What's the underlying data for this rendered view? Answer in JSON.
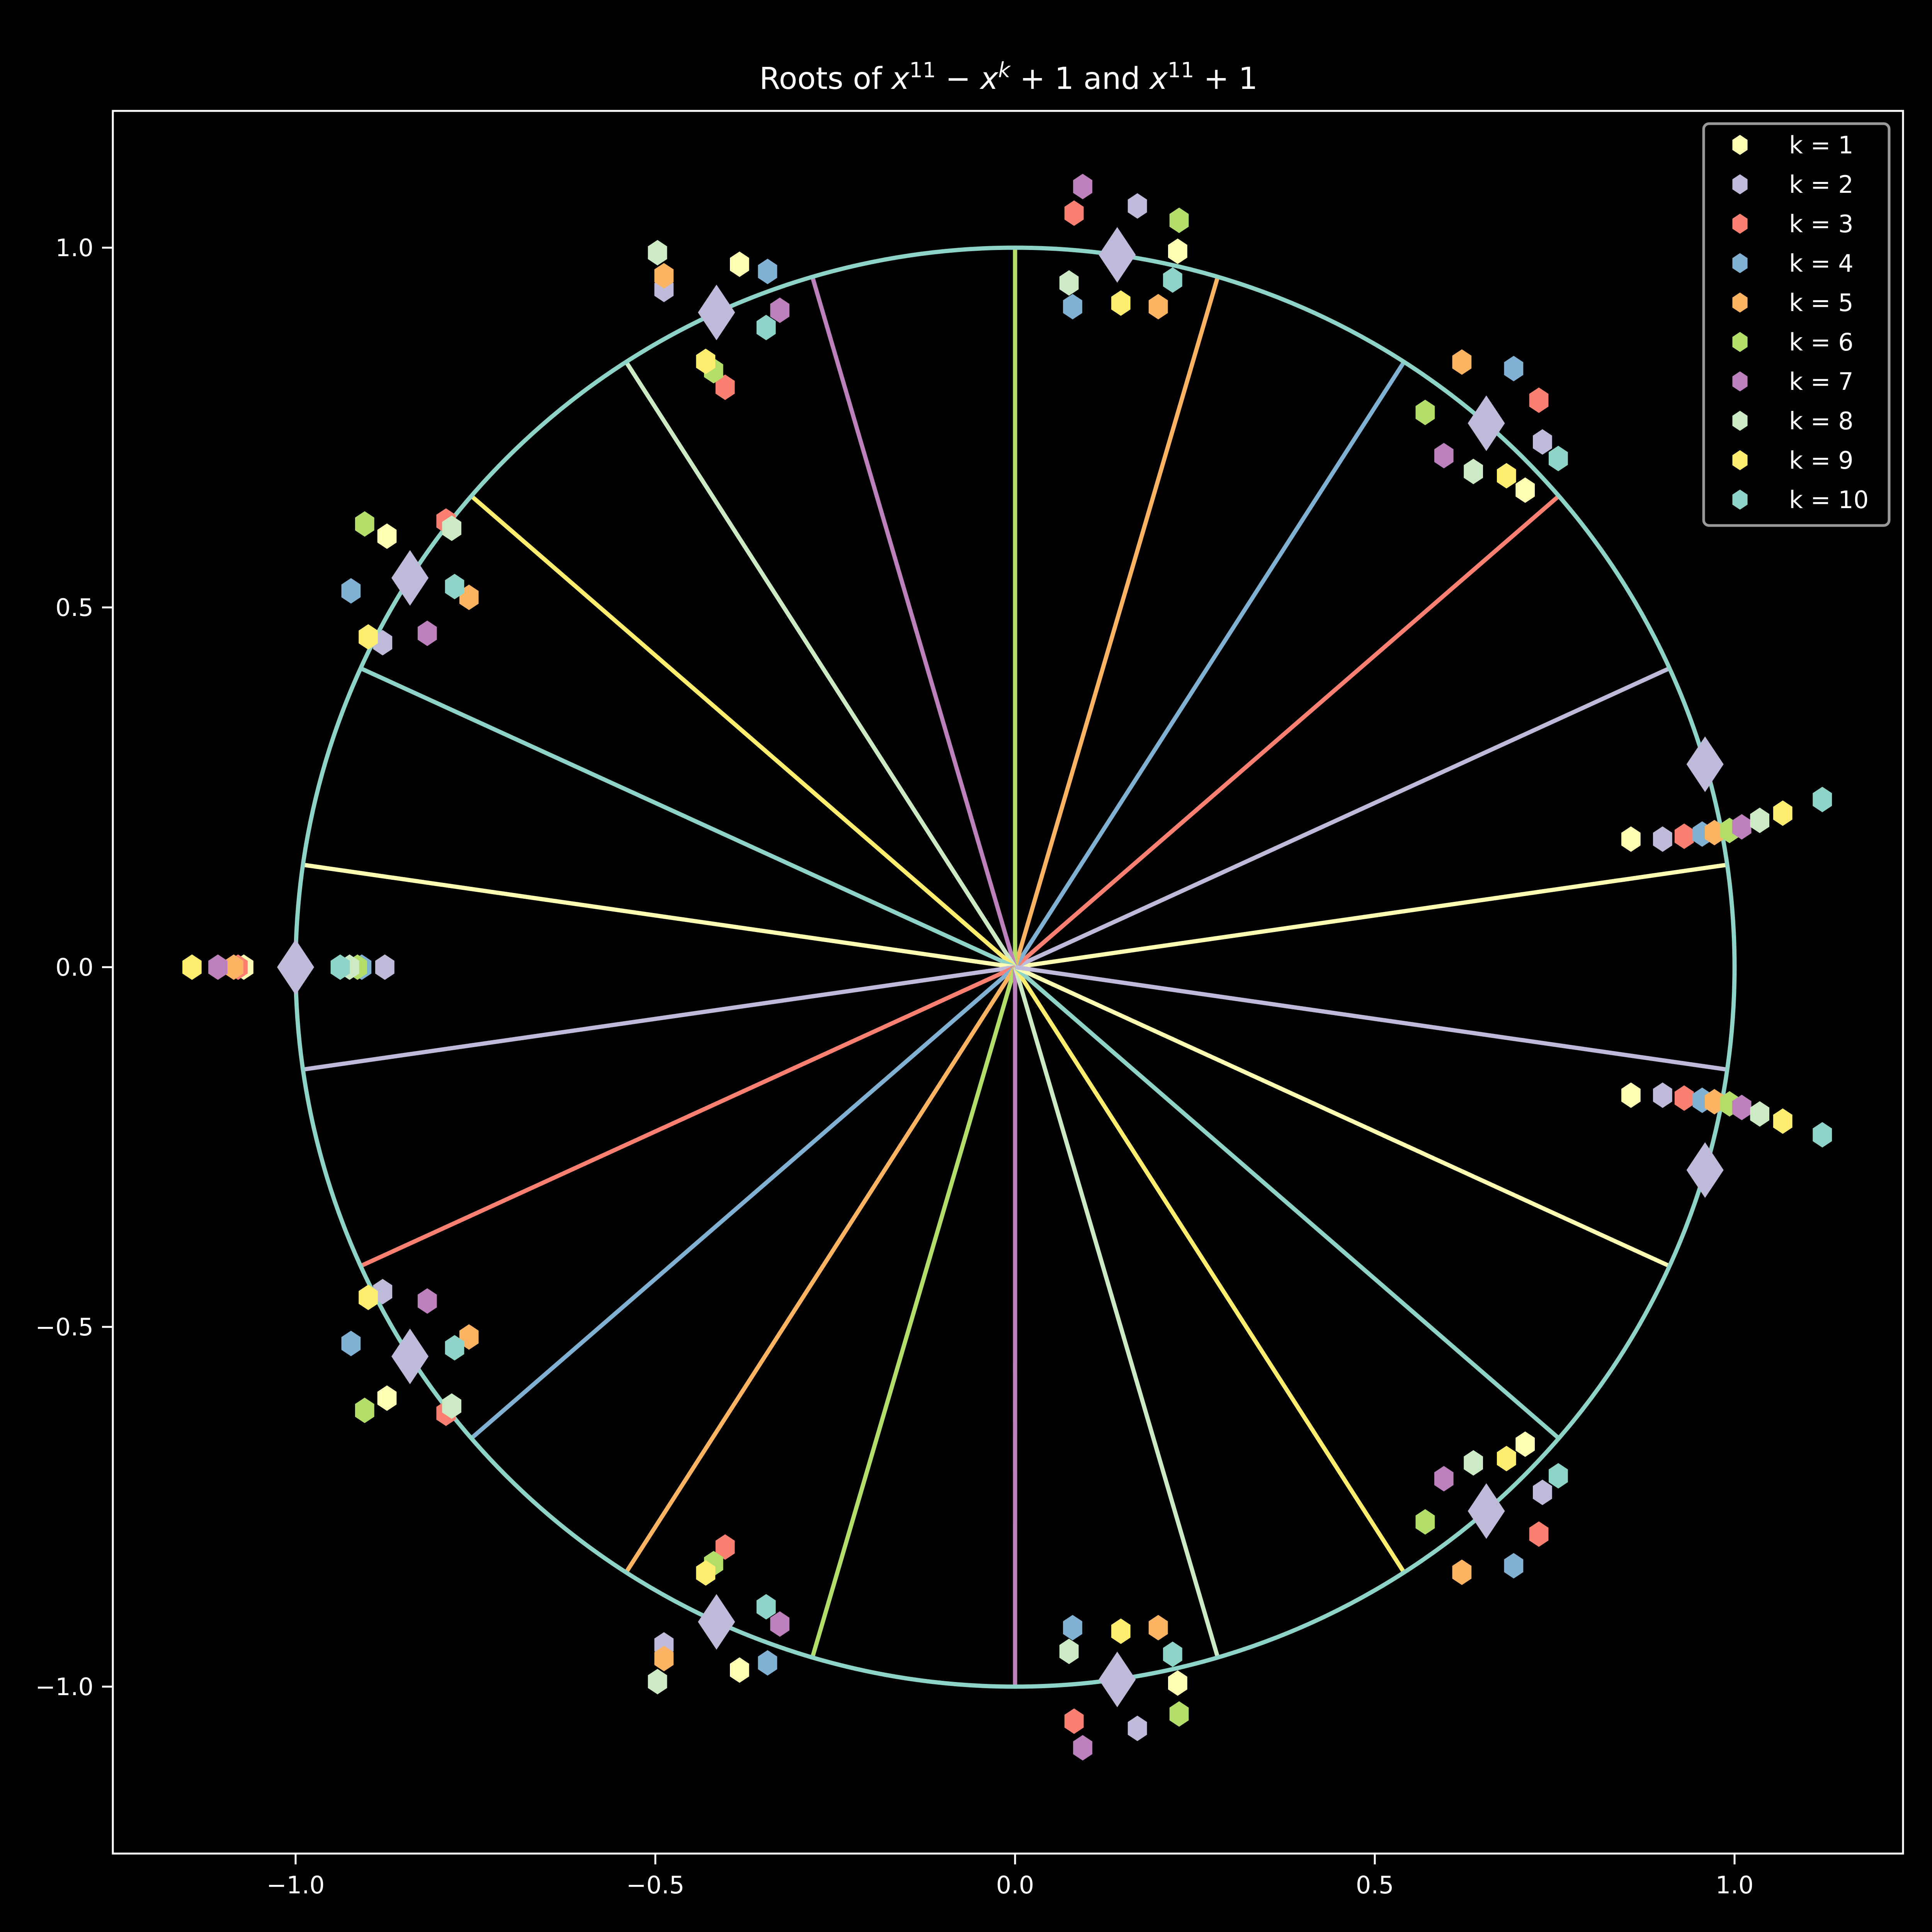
{
  "chart_data": {
    "type": "scatter",
    "title": "Roots of x^11 − x^k + 1 and x^11 + 1",
    "title_parts": {
      "pre": "Roots of ",
      "x1": "x",
      "e1": "11",
      "minus": " − ",
      "x2": "x",
      "e2": "k",
      "plus1": " + 1 and ",
      "x3": "x",
      "e3": "11",
      "plus2": " + 1"
    },
    "xlabel": "",
    "ylabel": "",
    "xlim": [
      -1.254,
      1.234
    ],
    "ylim": [
      -1.235,
      1.19
    ],
    "xticks": [
      -1.0,
      -0.5,
      0.0,
      0.5,
      1.0
    ],
    "xtick_labels": [
      "−1.0",
      "−0.5",
      "0.0",
      "0.5",
      "1.0"
    ],
    "yticks": [
      1.0,
      0.5,
      0.0,
      -0.5,
      -1.0
    ],
    "ytick_labels": [
      "1.0",
      "0.5",
      "0.0",
      "−0.5",
      "−1.0"
    ],
    "grid": false,
    "legend_position": "upper right",
    "background": "#000000",
    "unit_circle": {
      "radius": 1.0,
      "color": "#8dd3c7"
    },
    "spokes": {
      "count": 22,
      "angle_offset_deg": 8.1818,
      "step_deg": 16.3636,
      "colors": [
        "#ffffb3",
        "#bebada",
        "#fb8072",
        "#80b1d3",
        "#fdb462",
        "#b3de69",
        "#bc80bd",
        "#ccebc5",
        "#ffed6f",
        "#8dd3c7"
      ]
    },
    "reference_roots": {
      "name": "x^11 + 1",
      "marker": "diamond",
      "color": "#bebada",
      "points": [
        [
          0.142,
          0.99
        ],
        [
          0.655,
          0.756
        ],
        [
          0.959,
          0.282
        ],
        [
          0.959,
          -0.282
        ],
        [
          0.655,
          -0.756
        ],
        [
          0.142,
          -0.99
        ],
        [
          -0.415,
          -0.91
        ],
        [
          -0.841,
          -0.541
        ],
        [
          -1.0,
          0.0
        ],
        [
          -0.841,
          0.541
        ],
        [
          -0.415,
          0.91
        ]
      ]
    },
    "series": [
      {
        "name": "k = 1",
        "color": "#ffffb3",
        "points": [
          [
            0.226,
            0.995
          ],
          [
            0.709,
            0.663
          ],
          [
            0.856,
            0.178
          ],
          [
            0.856,
            -0.178
          ],
          [
            0.709,
            -0.663
          ],
          [
            0.226,
            -0.995
          ],
          [
            -0.383,
            -0.977
          ],
          [
            -0.873,
            -0.599
          ],
          [
            -1.072,
            0.0
          ],
          [
            -0.873,
            0.599
          ],
          [
            -0.383,
            0.977
          ]
        ]
      },
      {
        "name": "k = 2",
        "color": "#bebada",
        "points": [
          [
            0.17,
            1.058
          ],
          [
            0.733,
            0.73
          ],
          [
            0.9,
            0.178
          ],
          [
            0.9,
            -0.178
          ],
          [
            0.733,
            -0.73
          ],
          [
            0.17,
            -1.058
          ],
          [
            -0.488,
            -0.942
          ],
          [
            -0.879,
            -0.451
          ],
          [
            -0.876,
            0.0
          ],
          [
            -0.879,
            0.451
          ],
          [
            -0.488,
            0.942
          ]
        ]
      },
      {
        "name": "k = 3",
        "color": "#fb8072",
        "points": [
          [
            0.082,
            1.048
          ],
          [
            0.728,
            0.788
          ],
          [
            0.93,
            0.182
          ],
          [
            0.93,
            -0.182
          ],
          [
            0.728,
            -0.788
          ],
          [
            0.082,
            -1.048
          ],
          [
            -0.403,
            -0.806
          ],
          [
            -0.791,
            -0.62
          ],
          [
            -1.08,
            0.0
          ],
          [
            -0.791,
            0.62
          ],
          [
            -0.403,
            0.806
          ]
        ]
      },
      {
        "name": "k = 4",
        "color": "#80b1d3",
        "points": [
          [
            0.08,
            0.918
          ],
          [
            0.693,
            0.832
          ],
          [
            0.955,
            0.185
          ],
          [
            0.955,
            -0.185
          ],
          [
            0.693,
            -0.832
          ],
          [
            0.08,
            -0.918
          ],
          [
            -0.344,
            -0.967
          ],
          [
            -0.923,
            -0.523
          ],
          [
            -0.908,
            0.0
          ],
          [
            -0.923,
            0.523
          ],
          [
            -0.344,
            0.967
          ]
        ]
      },
      {
        "name": "k = 5",
        "color": "#fdb462",
        "points": [
          [
            0.199,
            0.918
          ],
          [
            0.621,
            0.841
          ],
          [
            0.972,
            0.187
          ],
          [
            0.972,
            -0.187
          ],
          [
            0.621,
            -0.841
          ],
          [
            0.199,
            -0.918
          ],
          [
            -0.488,
            -0.961
          ],
          [
            -0.759,
            -0.514
          ],
          [
            -1.086,
            0.0
          ],
          [
            -0.759,
            0.514
          ],
          [
            -0.488,
            0.961
          ]
        ]
      },
      {
        "name": "k = 6",
        "color": "#b3de69",
        "points": [
          [
            0.228,
            1.038
          ],
          [
            0.57,
            0.771
          ],
          [
            0.993,
            0.19
          ],
          [
            0.993,
            -0.19
          ],
          [
            0.57,
            -0.771
          ],
          [
            0.228,
            -1.038
          ],
          [
            -0.419,
            -0.829
          ],
          [
            -0.904,
            -0.616
          ],
          [
            -0.914,
            0.0
          ],
          [
            -0.904,
            0.616
          ],
          [
            -0.419,
            0.829
          ]
        ]
      },
      {
        "name": "k = 7",
        "color": "#bc80bd",
        "points": [
          [
            0.094,
            1.085
          ],
          [
            0.596,
            0.711
          ],
          [
            1.01,
            0.195
          ],
          [
            1.01,
            -0.195
          ],
          [
            0.596,
            -0.711
          ],
          [
            0.094,
            -1.085
          ],
          [
            -0.327,
            -0.913
          ],
          [
            -0.817,
            -0.464
          ],
          [
            -1.108,
            0.0
          ],
          [
            -0.817,
            0.464
          ],
          [
            -0.327,
            0.913
          ]
        ]
      },
      {
        "name": "k = 8",
        "color": "#ccebc5",
        "points": [
          [
            0.075,
            0.951
          ],
          [
            0.637,
            0.689
          ],
          [
            1.035,
            0.204
          ],
          [
            1.035,
            -0.204
          ],
          [
            0.637,
            -0.689
          ],
          [
            0.075,
            -0.951
          ],
          [
            -0.497,
            -0.993
          ],
          [
            -0.783,
            -0.61
          ],
          [
            -0.925,
            0.0
          ],
          [
            -0.783,
            0.61
          ],
          [
            -0.497,
            0.993
          ]
        ]
      },
      {
        "name": "k = 9",
        "color": "#ffed6f",
        "points": [
          [
            0.147,
            0.923
          ],
          [
            0.683,
            0.683
          ],
          [
            1.067,
            0.214
          ],
          [
            1.067,
            -0.214
          ],
          [
            0.683,
            -0.683
          ],
          [
            0.147,
            -0.923
          ],
          [
            -0.43,
            -0.842
          ],
          [
            -0.899,
            -0.459
          ],
          [
            -1.144,
            0.0
          ],
          [
            -0.899,
            0.459
          ],
          [
            -0.43,
            0.842
          ]
        ]
      },
      {
        "name": "k = 10",
        "color": "#8dd3c7",
        "points": [
          [
            0.219,
            0.955
          ],
          [
            0.755,
            0.707
          ],
          [
            1.122,
            0.233
          ],
          [
            1.122,
            -0.233
          ],
          [
            0.755,
            -0.707
          ],
          [
            0.219,
            -0.955
          ],
          [
            -0.346,
            -0.889
          ],
          [
            -0.779,
            -0.529
          ],
          [
            -0.938,
            0.0
          ],
          [
            -0.779,
            0.529
          ],
          [
            -0.346,
            0.889
          ]
        ]
      }
    ]
  }
}
